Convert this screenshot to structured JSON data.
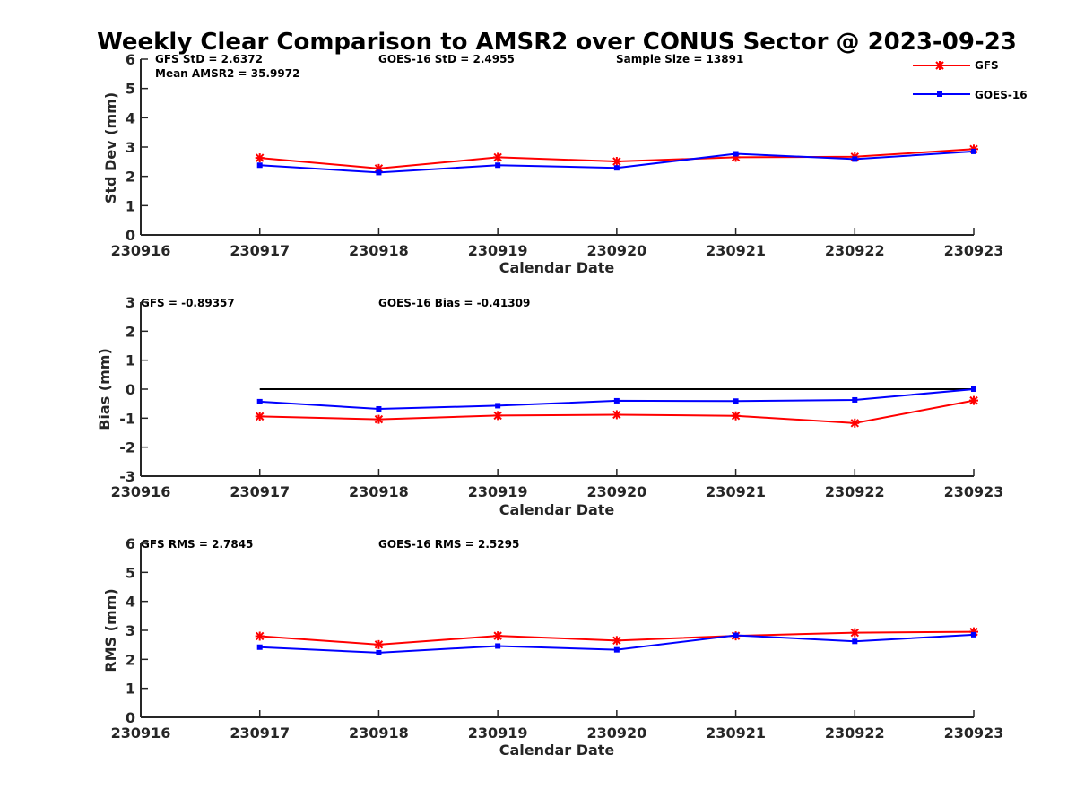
{
  "title": "Weekly Clear Comparison to AMSR2 over CONUS Sector @ 2023-09-23",
  "legend": {
    "items": [
      "GFS",
      "GOES-16"
    ]
  },
  "colors": {
    "gfs": "#ff0000",
    "goes": "#0000ff",
    "zero_line": "#000000"
  },
  "chart_data": [
    {
      "type": "line",
      "xlabel": "Calendar Date",
      "ylabel": "Std Dev (mm)",
      "categories": [
        "230916",
        "230917",
        "230918",
        "230919",
        "230920",
        "230921",
        "230922",
        "230923"
      ],
      "ylim": [
        0,
        6
      ],
      "yticks": [
        "0",
        "1",
        "2",
        "3",
        "4",
        "5",
        "6"
      ],
      "annotations": [
        "GFS StD = 2.6372",
        "GOES-16 StD = 2.4955",
        "Sample Size = 13891",
        "Mean AMSR2 = 35.9972"
      ],
      "series": [
        {
          "name": "GFS",
          "x": [
            "230917",
            "230918",
            "230919",
            "230920",
            "230921",
            "230922",
            "230923"
          ],
          "values": [
            2.63,
            2.27,
            2.65,
            2.51,
            2.65,
            2.67,
            2.93
          ]
        },
        {
          "name": "GOES-16",
          "x": [
            "230917",
            "230918",
            "230919",
            "230920",
            "230921",
            "230922",
            "230923"
          ],
          "values": [
            2.38,
            2.13,
            2.38,
            2.29,
            2.77,
            2.59,
            2.85
          ]
        }
      ]
    },
    {
      "type": "line",
      "xlabel": "Calendar Date",
      "ylabel": "Bias (mm)",
      "categories": [
        "230916",
        "230917",
        "230918",
        "230919",
        "230920",
        "230921",
        "230922",
        "230923"
      ],
      "ylim": [
        -3,
        3
      ],
      "yticks": [
        "-3",
        "-2",
        "-1",
        "0",
        "1",
        "2",
        "3"
      ],
      "zero_line": {
        "y": 0,
        "x_start": "230917",
        "x_end": "230923"
      },
      "annotations": [
        "GFS = -0.89357",
        "GOES-16 Bias  = -0.41309"
      ],
      "series": [
        {
          "name": "GFS",
          "x": [
            "230917",
            "230918",
            "230919",
            "230920",
            "230921",
            "230922",
            "230923"
          ],
          "values": [
            -0.94,
            -1.04,
            -0.91,
            -0.88,
            -0.92,
            -1.17,
            -0.39
          ]
        },
        {
          "name": "GOES-16",
          "x": [
            "230917",
            "230918",
            "230919",
            "230920",
            "230921",
            "230922",
            "230923"
          ],
          "values": [
            -0.43,
            -0.68,
            -0.57,
            -0.4,
            -0.41,
            -0.37,
            0.0
          ]
        }
      ]
    },
    {
      "type": "line",
      "xlabel": "Calendar Date",
      "ylabel": "RMS (mm)",
      "categories": [
        "230916",
        "230917",
        "230918",
        "230919",
        "230920",
        "230921",
        "230922",
        "230923"
      ],
      "ylim": [
        0,
        6
      ],
      "yticks": [
        "0",
        "1",
        "2",
        "3",
        "4",
        "5",
        "6"
      ],
      "annotations": [
        "GFS RMS = 2.7845",
        "GOES-16 RMS = 2.5295"
      ],
      "series": [
        {
          "name": "GFS",
          "x": [
            "230917",
            "230918",
            "230919",
            "230920",
            "230921",
            "230922",
            "230923"
          ],
          "values": [
            2.8,
            2.51,
            2.81,
            2.65,
            2.81,
            2.92,
            2.95
          ]
        },
        {
          "name": "GOES-16",
          "x": [
            "230917",
            "230918",
            "230919",
            "230920",
            "230921",
            "230922",
            "230923"
          ],
          "values": [
            2.42,
            2.23,
            2.46,
            2.33,
            2.83,
            2.62,
            2.85
          ]
        }
      ]
    }
  ]
}
